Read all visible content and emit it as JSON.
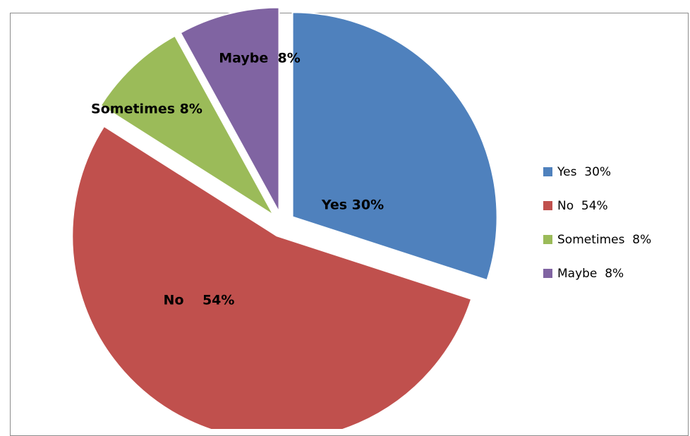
{
  "chart_data": {
    "type": "pie",
    "title": "",
    "categories": [
      "Yes",
      "No",
      "Sometimes",
      "Maybe"
    ],
    "values": [
      30,
      54,
      8,
      8
    ],
    "data_labels": [
      "Yes 30%",
      "No    54%",
      "Sometimes 8%",
      "Maybe  8%"
    ],
    "legend": {
      "placement": "right",
      "entries": [
        "Yes  30%",
        "No  54%",
        "Sometimes  8%",
        "Maybe  8%"
      ]
    },
    "exploded": true
  },
  "colors": {
    "Yes": "#4f81bd",
    "No": "#c0504d",
    "Sometimes": "#9bbb59",
    "Maybe": "#8064a2"
  }
}
